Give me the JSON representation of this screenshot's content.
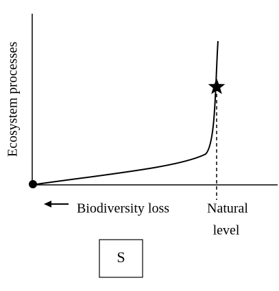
{
  "y_axis_label": "Ecosystem processes",
  "x_axis_label": "Biodiversity loss",
  "marker_label": {
    "line1": "Natural",
    "line2": "level"
  },
  "panel_label": "S"
}
